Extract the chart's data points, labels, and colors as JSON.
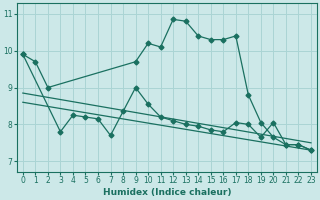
{
  "bg_color": "#cce8e8",
  "grid_color": "#aad4d4",
  "line_color": "#1a7060",
  "xlabel": "Humidex (Indice chaleur)",
  "xlim": [
    -0.5,
    23.5
  ],
  "ylim": [
    6.7,
    11.3
  ],
  "yticks": [
    7,
    8,
    9,
    10,
    11
  ],
  "xticks": [
    0,
    1,
    2,
    3,
    4,
    5,
    6,
    7,
    8,
    9,
    10,
    11,
    12,
    13,
    14,
    15,
    16,
    17,
    18,
    19,
    20,
    21,
    22,
    23
  ],
  "line1_x": [
    0,
    1,
    2,
    9,
    10,
    11,
    12,
    13,
    14,
    15,
    16,
    17,
    18,
    19,
    20,
    21,
    22,
    23
  ],
  "line1_y": [
    9.9,
    9.7,
    9.0,
    9.7,
    10.2,
    10.1,
    10.85,
    10.8,
    10.4,
    10.3,
    10.3,
    10.4,
    8.8,
    8.05,
    7.65,
    7.45,
    7.45,
    7.3
  ],
  "line2_x": [
    0,
    3,
    4,
    5,
    6,
    7,
    8,
    9,
    10,
    11,
    12,
    13,
    14,
    15,
    16,
    17,
    18,
    19,
    20,
    21,
    22,
    23
  ],
  "line2_y": [
    9.9,
    7.8,
    8.25,
    8.2,
    8.15,
    7.7,
    8.35,
    9.0,
    8.55,
    8.2,
    8.1,
    8.0,
    7.95,
    7.85,
    7.8,
    8.05,
    8.0,
    7.65,
    8.05,
    7.45,
    7.45,
    7.3
  ],
  "line3_x": [
    0,
    23
  ],
  "line3_y": [
    8.85,
    7.5
  ],
  "line4_x": [
    0,
    23
  ],
  "line4_y": [
    8.6,
    7.3
  ]
}
